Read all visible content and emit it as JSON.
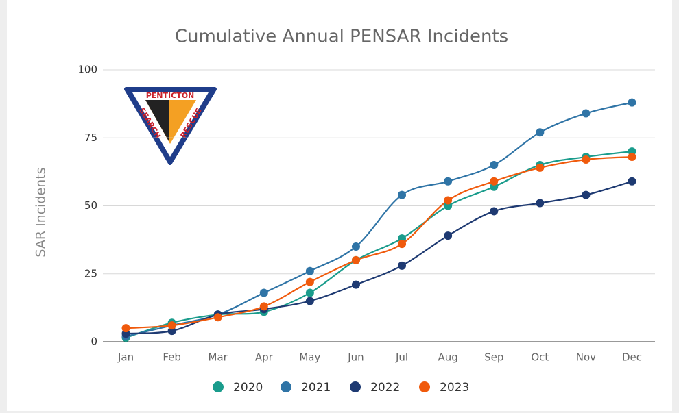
{
  "chart_data": {
    "type": "line",
    "title": "Cumulative Annual PENSAR Incidents",
    "y_label": "SAR Incidents",
    "categories": [
      "Jan",
      "Feb",
      "Mar",
      "Apr",
      "May",
      "Jun",
      "Jul",
      "Aug",
      "Sep",
      "Oct",
      "Nov",
      "Dec"
    ],
    "series": [
      {
        "name": "2020",
        "color": "#1a9c8c",
        "values": [
          1.5,
          7,
          10,
          11,
          18,
          30,
          38,
          50,
          57,
          65,
          68,
          70
        ]
      },
      {
        "name": "2021",
        "color": "#2f74a6",
        "values": [
          2,
          6,
          10,
          18,
          26,
          35,
          54,
          59,
          65,
          77,
          84,
          88
        ]
      },
      {
        "name": "2022",
        "color": "#1e3a72",
        "values": [
          3,
          4,
          10,
          12,
          15,
          21,
          28,
          39,
          48,
          51,
          54,
          59
        ]
      },
      {
        "name": "2023",
        "color": "#f05a0c",
        "values": [
          5,
          6,
          9,
          13,
          22,
          30,
          36,
          52,
          59,
          64,
          67,
          68
        ]
      }
    ],
    "ylim": [
      0,
      100
    ],
    "yticks": [
      0,
      25,
      50,
      75,
      100
    ],
    "grid": true,
    "smooth": true,
    "legend": "bottom",
    "logo": {
      "top": "PENTICTON",
      "left": "SEARCH",
      "right": "RESCUE"
    }
  }
}
